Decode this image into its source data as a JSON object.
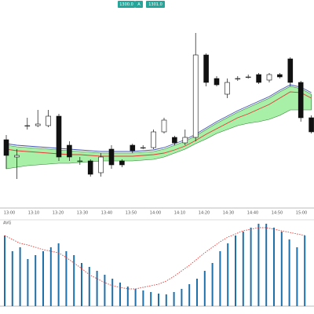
{
  "chart_data": [
    {
      "type": "candlestick",
      "ylim": [
        0,
        265
      ],
      "open": [
        87,
        65,
        105,
        105,
        105,
        117,
        80,
        60,
        60,
        45,
        75,
        60,
        80,
        77,
        77,
        97,
        90,
        83,
        90,
        195,
        165,
        145,
        165,
        167,
        170,
        163,
        170,
        190,
        160,
        115
      ],
      "close": [
        67,
        67,
        105,
        107,
        117,
        65,
        65,
        60,
        43,
        65,
        55,
        55,
        73,
        77,
        97,
        112,
        83,
        90,
        195,
        160,
        157,
        160,
        165,
        167,
        160,
        170,
        167,
        160,
        115,
        97
      ],
      "high": [
        93,
        75,
        115,
        125,
        125,
        120,
        85,
        65,
        62,
        70,
        80,
        62,
        82,
        80,
        100,
        115,
        92,
        100,
        223,
        197,
        168,
        165,
        168,
        170,
        172,
        172,
        172,
        192,
        162,
        118
      ],
      "low": [
        50,
        37,
        100,
        103,
        103,
        60,
        60,
        55,
        40,
        40,
        50,
        52,
        70,
        75,
        75,
        95,
        80,
        80,
        85,
        155,
        155,
        140,
        162,
        165,
        158,
        160,
        165,
        155,
        110,
        95
      ],
      "band": {
        "color": "#a8f0a8",
        "upper": [
          80,
          78,
          77,
          76,
          75,
          74,
          73,
          72,
          71,
          70,
          70,
          70,
          70,
          71,
          72,
          75,
          80,
          85,
          92,
          100,
          108,
          115,
          122,
          128,
          134,
          140,
          148,
          155,
          152,
          145
        ],
        "lower": [
          50,
          52,
          54,
          55,
          56,
          57,
          57,
          58,
          59,
          60,
          60,
          60,
          60,
          61,
          62,
          65,
          70,
          75,
          82,
          88,
          95,
          100,
          105,
          108,
          110,
          113,
          118,
          125,
          125,
          125
        ]
      },
      "lines": [
        {
          "color": "#e53935",
          "values": [
            75,
            73,
            72,
            71,
            70,
            69,
            68,
            68,
            67,
            66,
            66,
            66,
            66,
            67,
            68,
            70,
            74,
            79,
            86,
            94,
            101,
            108,
            115,
            120,
            126,
            132,
            140,
            148,
            147,
            140
          ]
        },
        {
          "color": "#3f51b5",
          "values": [
            82,
            80,
            79,
            78,
            77,
            76,
            75,
            74,
            73,
            72,
            72,
            72,
            72,
            73,
            74,
            77,
            82,
            87,
            94,
            102,
            110,
            117,
            124,
            130,
            136,
            142,
            150,
            157,
            154,
            147
          ]
        }
      ],
      "time_labels": [
        "13:00",
        "13:10",
        "13:20",
        "13:30",
        "13:40",
        "13:50",
        "14:00",
        "14:10",
        "14:20",
        "14:30",
        "14:40",
        "14:50",
        "15:00"
      ],
      "buttons": [
        "1300.0",
        "A",
        "1301.0"
      ]
    },
    {
      "type": "bar",
      "label": "AVG",
      "ylim": [
        0,
        105
      ],
      "color": "#1f6fa8",
      "values": [
        90,
        70,
        75,
        60,
        65,
        70,
        75,
        80,
        70,
        65,
        55,
        50,
        45,
        40,
        35,
        30,
        25,
        22,
        20,
        18,
        16,
        15,
        18,
        22,
        28,
        35,
        45,
        55,
        70,
        80,
        90,
        95,
        100,
        105,
        105,
        100,
        95,
        85,
        75,
        90
      ],
      "line": {
        "color": "#e53935",
        "values": [
          90,
          85,
          80,
          78,
          75,
          72,
          70,
          68,
          62,
          55,
          48,
          40,
          35,
          30,
          26,
          24,
          22,
          22,
          24,
          26,
          28,
          32,
          38,
          45,
          52,
          60,
          68,
          75,
          82,
          88,
          92,
          96,
          98,
          100,
          100,
          98,
          96,
          94,
          92,
          90
        ]
      }
    }
  ]
}
